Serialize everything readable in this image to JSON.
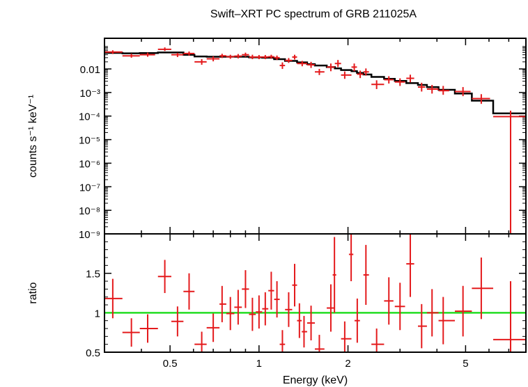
{
  "title": "Swift–XRT PC spectrum of GRB 211025A",
  "colors": {
    "data": "#e41a1c",
    "model": "#000000",
    "unity": "#22dd22",
    "frame": "#000000"
  },
  "chart_data": [
    {
      "type": "scatter",
      "panel": "spectrum",
      "title": "Swift–XRT PC spectrum of GRB 211025A",
      "ylabel": "counts s⁻¹ keV⁻¹",
      "xscale": "log",
      "yscale": "log",
      "xlim": [
        0.3,
        8.0
      ],
      "ylim": [
        1e-09,
        0.2
      ],
      "ytick_labels": [
        "0.01",
        "10⁻³",
        "10⁻⁴",
        "10⁻⁵",
        "10⁻⁶",
        "10⁻⁷",
        "10⁻⁸",
        "10⁻⁹"
      ],
      "points": [
        {
          "x": 0.32,
          "xerr": [
            0.3,
            0.345
          ],
          "y": 0.052,
          "yerr": [
            0.043,
            0.062
          ]
        },
        {
          "x": 0.37,
          "xerr": [
            0.345,
            0.395
          ],
          "y": 0.036,
          "yerr": [
            0.03,
            0.044
          ]
        },
        {
          "x": 0.42,
          "xerr": [
            0.395,
            0.445
          ],
          "y": 0.04,
          "yerr": [
            0.033,
            0.049
          ]
        },
        {
          "x": 0.48,
          "xerr": [
            0.455,
            0.505
          ],
          "y": 0.068,
          "yerr": [
            0.058,
            0.082
          ]
        },
        {
          "x": 0.53,
          "xerr": [
            0.505,
            0.555
          ],
          "y": 0.04,
          "yerr": [
            0.032,
            0.048
          ]
        },
        {
          "x": 0.58,
          "xerr": [
            0.555,
            0.605
          ],
          "y": 0.045,
          "yerr": [
            0.037,
            0.055
          ]
        },
        {
          "x": 0.64,
          "xerr": [
            0.605,
            0.665
          ],
          "y": 0.02,
          "yerr": [
            0.015,
            0.026
          ]
        },
        {
          "x": 0.7,
          "xerr": [
            0.665,
            0.735
          ],
          "y": 0.027,
          "yerr": [
            0.021,
            0.034
          ]
        },
        {
          "x": 0.75,
          "xerr": [
            0.735,
            0.775
          ],
          "y": 0.036,
          "yerr": [
            0.029,
            0.044
          ]
        },
        {
          "x": 0.8,
          "xerr": [
            0.775,
            0.825
          ],
          "y": 0.033,
          "yerr": [
            0.027,
            0.04
          ]
        },
        {
          "x": 0.85,
          "xerr": [
            0.825,
            0.875
          ],
          "y": 0.035,
          "yerr": [
            0.028,
            0.043
          ]
        },
        {
          "x": 0.9,
          "xerr": [
            0.875,
            0.925
          ],
          "y": 0.04,
          "yerr": [
            0.033,
            0.049
          ]
        },
        {
          "x": 0.95,
          "xerr": [
            0.925,
            0.975
          ],
          "y": 0.032,
          "yerr": [
            0.026,
            0.04
          ]
        },
        {
          "x": 1.0,
          "xerr": [
            0.975,
            1.025
          ],
          "y": 0.032,
          "yerr": [
            0.026,
            0.039
          ]
        },
        {
          "x": 1.05,
          "xerr": [
            1.025,
            1.075
          ],
          "y": 0.032,
          "yerr": [
            0.026,
            0.039
          ]
        },
        {
          "x": 1.1,
          "xerr": [
            1.075,
            1.125
          ],
          "y": 0.033,
          "yerr": [
            0.027,
            0.04
          ]
        },
        {
          "x": 1.15,
          "xerr": [
            1.125,
            1.175
          ],
          "y": 0.03,
          "yerr": [
            0.024,
            0.037
          ]
        },
        {
          "x": 1.2,
          "xerr": [
            1.175,
            1.225
          ],
          "y": 0.014,
          "yerr": [
            0.01,
            0.019
          ]
        },
        {
          "x": 1.26,
          "xerr": [
            1.225,
            1.295
          ],
          "y": 0.023,
          "yerr": [
            0.018,
            0.029
          ]
        },
        {
          "x": 1.32,
          "xerr": [
            1.295,
            1.345
          ],
          "y": 0.032,
          "yerr": [
            0.025,
            0.04
          ]
        },
        {
          "x": 1.4,
          "xerr": [
            1.345,
            1.455
          ],
          "y": 0.017,
          "yerr": [
            0.013,
            0.022
          ]
        },
        {
          "x": 1.5,
          "xerr": [
            1.455,
            1.545
          ],
          "y": 0.015,
          "yerr": [
            0.011,
            0.02
          ]
        },
        {
          "x": 1.6,
          "xerr": [
            1.545,
            1.665
          ],
          "y": 0.0075,
          "yerr": [
            0.0055,
            0.01
          ]
        },
        {
          "x": 1.75,
          "xerr": [
            1.695,
            1.805
          ],
          "y": 0.012,
          "yerr": [
            0.008,
            0.017
          ]
        },
        {
          "x": 1.85,
          "xerr": [
            1.805,
            1.895
          ],
          "y": 0.017,
          "yerr": [
            0.012,
            0.024
          ]
        },
        {
          "x": 1.95,
          "xerr": [
            1.895,
            2.055
          ],
          "y": 0.0055,
          "yerr": [
            0.0038,
            0.0078
          ]
        },
        {
          "x": 2.1,
          "xerr": [
            2.055,
            2.145
          ],
          "y": 0.012,
          "yerr": [
            0.008,
            0.017
          ]
        },
        {
          "x": 2.2,
          "xerr": [
            2.145,
            2.255
          ],
          "y": 0.006,
          "yerr": [
            0.0041,
            0.0085
          ]
        },
        {
          "x": 2.3,
          "xerr": [
            2.255,
            2.355
          ],
          "y": 0.0075,
          "yerr": [
            0.0052,
            0.0105
          ]
        },
        {
          "x": 2.5,
          "xerr": [
            2.4,
            2.65
          ],
          "y": 0.0022,
          "yerr": [
            0.0014,
            0.0033
          ]
        },
        {
          "x": 2.75,
          "xerr": [
            2.65,
            2.85
          ],
          "y": 0.0035,
          "yerr": [
            0.0024,
            0.0049
          ]
        },
        {
          "x": 3.0,
          "xerr": [
            2.88,
            3.12
          ],
          "y": 0.0028,
          "yerr": [
            0.0019,
            0.004
          ]
        },
        {
          "x": 3.25,
          "xerr": [
            3.15,
            3.35
          ],
          "y": 0.004,
          "yerr": [
            0.0027,
            0.0057
          ]
        },
        {
          "x": 3.55,
          "xerr": [
            3.45,
            3.65
          ],
          "y": 0.0017,
          "yerr": [
            0.0011,
            0.0026
          ]
        },
        {
          "x": 3.85,
          "xerr": [
            3.7,
            4.05
          ],
          "y": 0.0014,
          "yerr": [
            0.0009,
            0.0021
          ]
        },
        {
          "x": 4.2,
          "xerr": [
            4.05,
            4.4
          ],
          "y": 0.0012,
          "yerr": [
            0.0008,
            0.0019
          ]
        },
        {
          "x": 4.9,
          "xerr": [
            4.6,
            5.2
          ],
          "y": 0.0011,
          "yerr": [
            0.0007,
            0.0017
          ]
        },
        {
          "x": 5.65,
          "xerr": [
            5.25,
            6.05
          ],
          "y": 0.00055,
          "yerr": [
            0.00033,
            0.00085
          ]
        },
        {
          "x": 7.1,
          "xerr": [
            6.2,
            8.0
          ],
          "y": 9.5e-05,
          "yerr": [
            1e-09,
            0.00017
          ]
        }
      ],
      "model_steps": [
        {
          "x0": 0.3,
          "x1": 0.345,
          "y": 0.048
        },
        {
          "x0": 0.345,
          "x1": 0.395,
          "y": 0.046
        },
        {
          "x0": 0.395,
          "x1": 0.455,
          "y": 0.047
        },
        {
          "x0": 0.455,
          "x1": 0.555,
          "y": 0.05
        },
        {
          "x0": 0.555,
          "x1": 0.605,
          "y": 0.04
        },
        {
          "x0": 0.605,
          "x1": 0.665,
          "y": 0.034
        },
        {
          "x0": 0.665,
          "x1": 0.775,
          "y": 0.033
        },
        {
          "x0": 0.775,
          "x1": 0.925,
          "y": 0.033
        },
        {
          "x0": 0.925,
          "x1": 1.025,
          "y": 0.031
        },
        {
          "x0": 1.025,
          "x1": 1.125,
          "y": 0.03
        },
        {
          "x0": 1.125,
          "x1": 1.225,
          "y": 0.026
        },
        {
          "x0": 1.225,
          "x1": 1.345,
          "y": 0.022
        },
        {
          "x0": 1.345,
          "x1": 1.455,
          "y": 0.019
        },
        {
          "x0": 1.455,
          "x1": 1.545,
          "y": 0.016
        },
        {
          "x0": 1.545,
          "x1": 1.695,
          "y": 0.014
        },
        {
          "x0": 1.695,
          "x1": 1.805,
          "y": 0.012
        },
        {
          "x0": 1.805,
          "x1": 1.895,
          "y": 0.0105
        },
        {
          "x0": 1.895,
          "x1": 2.055,
          "y": 0.009
        },
        {
          "x0": 2.055,
          "x1": 2.145,
          "y": 0.008
        },
        {
          "x0": 2.145,
          "x1": 2.255,
          "y": 0.0068
        },
        {
          "x0": 2.255,
          "x1": 2.4,
          "y": 0.0058
        },
        {
          "x0": 2.4,
          "x1": 2.65,
          "y": 0.0046
        },
        {
          "x0": 2.65,
          "x1": 2.88,
          "y": 0.0038
        },
        {
          "x0": 2.88,
          "x1": 3.15,
          "y": 0.0031
        },
        {
          "x0": 3.15,
          "x1": 3.45,
          "y": 0.0025
        },
        {
          "x0": 3.45,
          "x1": 3.7,
          "y": 0.0021
        },
        {
          "x0": 3.7,
          "x1": 4.05,
          "y": 0.0017
        },
        {
          "x0": 4.05,
          "x1": 4.6,
          "y": 0.0013
        },
        {
          "x0": 4.6,
          "x1": 5.25,
          "y": 0.0009
        },
        {
          "x0": 5.25,
          "x1": 6.2,
          "y": 0.00045
        },
        {
          "x0": 6.2,
          "x1": 8.0,
          "y": 0.00013
        }
      ]
    },
    {
      "type": "scatter",
      "panel": "ratio",
      "xlabel": "Energy (keV)",
      "ylabel": "ratio",
      "xscale": "log",
      "xlim": [
        0.3,
        8.0
      ],
      "ylim": [
        0.5,
        2.0
      ],
      "xtick_labels": [
        "0.5",
        "1",
        "2",
        "5"
      ],
      "xtick_values": [
        0.5,
        1,
        2,
        5
      ],
      "ytick_labels": [
        "0.5",
        "1",
        "1.5"
      ],
      "ytick_values": [
        0.5,
        1.0,
        1.5
      ],
      "reference_line": 1.0,
      "points": [
        {
          "x": 0.32,
          "xerr": [
            0.3,
            0.345
          ],
          "y": 1.18,
          "yerr": [
            0.93,
            1.43
          ]
        },
        {
          "x": 0.37,
          "xerr": [
            0.345,
            0.395
          ],
          "y": 0.75,
          "yerr": [
            0.57,
            0.93
          ]
        },
        {
          "x": 0.42,
          "xerr": [
            0.395,
            0.455
          ],
          "y": 0.8,
          "yerr": [
            0.62,
            0.98
          ]
        },
        {
          "x": 0.48,
          "xerr": [
            0.455,
            0.505
          ],
          "y": 1.46,
          "yerr": [
            1.25,
            1.67
          ]
        },
        {
          "x": 0.53,
          "xerr": [
            0.505,
            0.555
          ],
          "y": 0.89,
          "yerr": [
            0.7,
            1.08
          ]
        },
        {
          "x": 0.58,
          "xerr": [
            0.555,
            0.605
          ],
          "y": 1.27,
          "yerr": [
            1.04,
            1.5
          ]
        },
        {
          "x": 0.64,
          "xerr": [
            0.605,
            0.665
          ],
          "y": 0.6,
          "yerr": [
            0.44,
            0.76
          ]
        },
        {
          "x": 0.7,
          "xerr": [
            0.665,
            0.735
          ],
          "y": 0.81,
          "yerr": [
            0.63,
            0.99
          ]
        },
        {
          "x": 0.75,
          "xerr": [
            0.735,
            0.775
          ],
          "y": 1.11,
          "yerr": [
            0.88,
            1.34
          ]
        },
        {
          "x": 0.8,
          "xerr": [
            0.775,
            0.825
          ],
          "y": 0.99,
          "yerr": [
            0.78,
            1.2
          ]
        },
        {
          "x": 0.85,
          "xerr": [
            0.825,
            0.875
          ],
          "y": 1.07,
          "yerr": [
            0.85,
            1.29
          ]
        },
        {
          "x": 0.9,
          "xerr": [
            0.875,
            0.925
          ],
          "y": 1.3,
          "yerr": [
            1.06,
            1.54
          ]
        },
        {
          "x": 0.95,
          "xerr": [
            0.925,
            0.975
          ],
          "y": 0.98,
          "yerr": [
            0.77,
            1.19
          ]
        },
        {
          "x": 1.0,
          "xerr": [
            0.975,
            1.025
          ],
          "y": 1.01,
          "yerr": [
            0.8,
            1.22
          ]
        },
        {
          "x": 1.05,
          "xerr": [
            1.025,
            1.075
          ],
          "y": 1.05,
          "yerr": [
            0.84,
            1.26
          ]
        },
        {
          "x": 1.1,
          "xerr": [
            1.075,
            1.125
          ],
          "y": 1.28,
          "yerr": [
            1.04,
            1.52
          ]
        },
        {
          "x": 1.15,
          "xerr": [
            1.125,
            1.175
          ],
          "y": 1.17,
          "yerr": [
            0.94,
            1.4
          ]
        },
        {
          "x": 1.2,
          "xerr": [
            1.175,
            1.225
          ],
          "y": 0.6,
          "yerr": [
            0.42,
            0.78
          ]
        },
        {
          "x": 1.26,
          "xerr": [
            1.225,
            1.295
          ],
          "y": 1.04,
          "yerr": [
            0.82,
            1.26
          ]
        },
        {
          "x": 1.32,
          "xerr": [
            1.295,
            1.345
          ],
          "y": 1.35,
          "yerr": [
            1.08,
            1.62
          ]
        },
        {
          "x": 1.37,
          "xerr": [
            1.345,
            1.395
          ],
          "y": 0.9,
          "yerr": [
            0.68,
            1.12
          ]
        },
        {
          "x": 1.42,
          "xerr": [
            1.395,
            1.455
          ],
          "y": 0.76,
          "yerr": [
            0.56,
            0.96
          ]
        },
        {
          "x": 1.5,
          "xerr": [
            1.455,
            1.545
          ],
          "y": 0.87,
          "yerr": [
            0.65,
            1.09
          ]
        },
        {
          "x": 1.6,
          "xerr": [
            1.545,
            1.665
          ],
          "y": 0.54,
          "yerr": [
            0.36,
            0.72
          ]
        },
        {
          "x": 1.75,
          "xerr": [
            1.695,
            1.805
          ],
          "y": 1.06,
          "yerr": [
            0.76,
            1.36
          ]
        },
        {
          "x": 1.8,
          "xerr": [
            1.775,
            1.825
          ],
          "y": 1.48,
          "yerr": [
            1.0,
            1.96
          ]
        },
        {
          "x": 1.95,
          "xerr": [
            1.895,
            2.055
          ],
          "y": 0.67,
          "yerr": [
            0.45,
            0.89
          ]
        },
        {
          "x": 2.05,
          "xerr": [
            2.015,
            2.085
          ],
          "y": 1.74,
          "yerr": [
            1.4,
            2.0
          ]
        },
        {
          "x": 2.15,
          "xerr": [
            2.105,
            2.195
          ],
          "y": 0.9,
          "yerr": [
            0.62,
            1.18
          ]
        },
        {
          "x": 2.3,
          "xerr": [
            2.255,
            2.355
          ],
          "y": 1.48,
          "yerr": [
            1.1,
            1.86
          ]
        },
        {
          "x": 2.5,
          "xerr": [
            2.4,
            2.65
          ],
          "y": 0.6,
          "yerr": [
            0.4,
            0.8
          ]
        },
        {
          "x": 2.75,
          "xerr": [
            2.65,
            2.85
          ],
          "y": 1.15,
          "yerr": [
            0.85,
            1.45
          ]
        },
        {
          "x": 3.0,
          "xerr": [
            2.88,
            3.12
          ],
          "y": 1.08,
          "yerr": [
            0.78,
            1.38
          ]
        },
        {
          "x": 3.25,
          "xerr": [
            3.15,
            3.35
          ],
          "y": 1.62,
          "yerr": [
            1.2,
            2.0
          ]
        },
        {
          "x": 3.55,
          "xerr": [
            3.45,
            3.7
          ],
          "y": 0.83,
          "yerr": [
            0.55,
            1.11
          ]
        },
        {
          "x": 3.85,
          "xerr": [
            3.7,
            4.05
          ],
          "y": 1.0,
          "yerr": [
            0.7,
            1.3
          ]
        },
        {
          "x": 4.2,
          "xerr": [
            4.05,
            4.6
          ],
          "y": 0.9,
          "yerr": [
            0.6,
            1.2
          ]
        },
        {
          "x": 4.9,
          "xerr": [
            4.6,
            5.25
          ],
          "y": 1.02,
          "yerr": [
            0.7,
            1.34
          ]
        },
        {
          "x": 5.65,
          "xerr": [
            5.25,
            6.2
          ],
          "y": 1.31,
          "yerr": [
            0.92,
            1.7
          ]
        },
        {
          "x": 7.1,
          "xerr": [
            6.2,
            8.0
          ],
          "y": 0.66,
          "yerr": [
            0.3,
            1.4
          ]
        }
      ]
    }
  ]
}
